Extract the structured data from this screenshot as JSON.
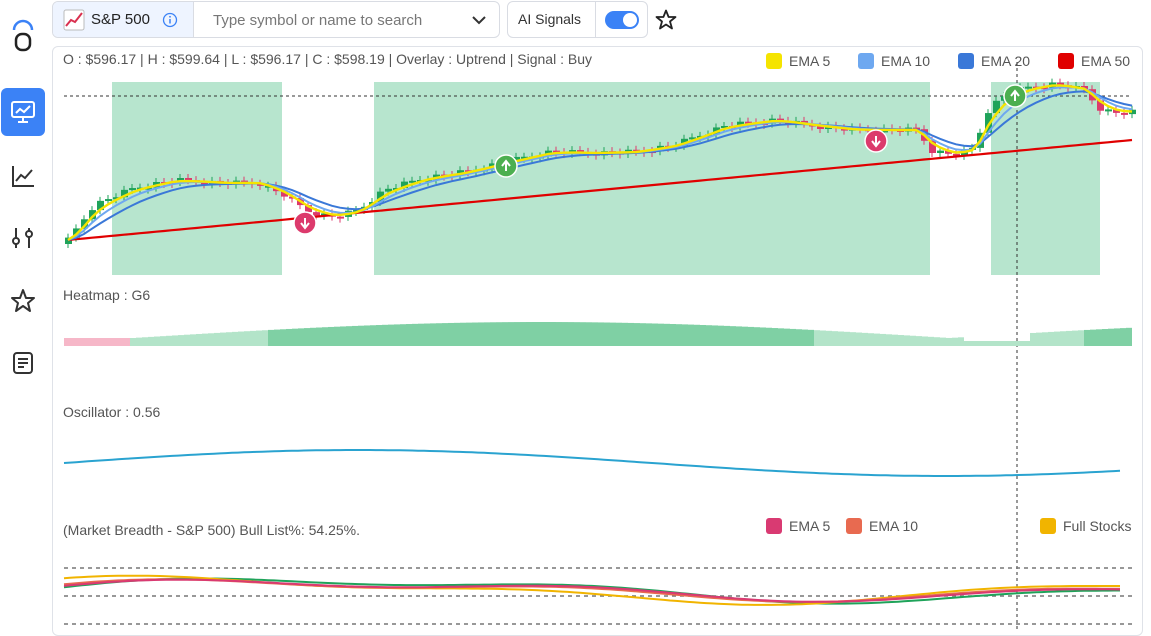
{
  "sidebar": {
    "items": [
      {
        "icon": "monitor-chart-icon",
        "active": true
      },
      {
        "icon": "line-chart-icon",
        "active": false
      },
      {
        "icon": "sliders-icon",
        "active": false
      },
      {
        "icon": "star-icon",
        "active": false
      },
      {
        "icon": "document-icon",
        "active": false
      }
    ]
  },
  "header": {
    "symbol": "S&P 500",
    "search_placeholder": "Type symbol or name to search",
    "ai_signals_label": "AI Signals",
    "ai_signals_on": true
  },
  "ohlc_line": "O : $596.17 | H : $599.64 | L : $596.17 | C : $598.19 | Overlay  : Uptrend | Signal : Buy",
  "legend_main": [
    {
      "label": "EMA 5",
      "color": "#f5e400"
    },
    {
      "label": "EMA 10",
      "color": "#6ea8f0"
    },
    {
      "label": "EMA 20",
      "color": "#3a78d8"
    },
    {
      "label": "EMA 50",
      "color": "#e00000"
    }
  ],
  "heatmap_label": "Heatmap : G6",
  "oscillator_label": "Oscillator : 0.56",
  "breadth_label": "(Market Breadth - S&P 500) Bull List%: 54.25%.",
  "legend_breadth": [
    {
      "label": "EMA 5",
      "color": "#d93a72"
    },
    {
      "label": "EMA 10",
      "color": "#e86a50"
    },
    {
      "label": "Full Stocks",
      "color": "#f1b400"
    }
  ],
  "colors": {
    "up": "#1fa35a",
    "down": "#dc3a6c",
    "zone": "#9fdcbe",
    "accent": "#3b82f6"
  }
}
